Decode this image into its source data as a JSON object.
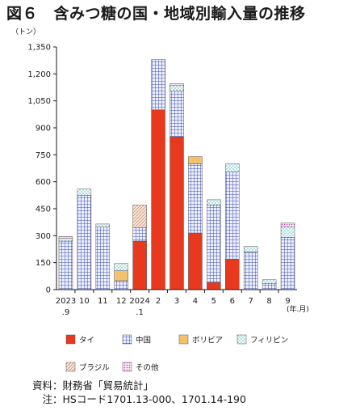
{
  "title": "図６　含みつ糖の国・地域別輸入量の推移",
  "chart_data": {
    "type": "bar",
    "stacked": true,
    "unit_label": "（トン）",
    "x_unit_label": "(年.月)",
    "categories": [
      {
        "line1": "2023",
        "line2": ".9"
      },
      {
        "line1": "10",
        "line2": ""
      },
      {
        "line1": "11",
        "line2": ""
      },
      {
        "line1": "12",
        "line2": ""
      },
      {
        "line1": "2024",
        "line2": ".1"
      },
      {
        "line1": "2",
        "line2": ""
      },
      {
        "line1": "3",
        "line2": ""
      },
      {
        "line1": "4",
        "line2": ""
      },
      {
        "line1": "5",
        "line2": ""
      },
      {
        "line1": "6",
        "line2": ""
      },
      {
        "line1": "7",
        "line2": ""
      },
      {
        "line1": "8",
        "line2": ""
      },
      {
        "line1": "9",
        "line2": ""
      }
    ],
    "ylim": [
      0,
      1350
    ],
    "yticks": [
      "0",
      "150",
      "300",
      "450",
      "600",
      "750",
      "900",
      "1,050",
      "1,200",
      "1,350"
    ],
    "grid": false,
    "legend_position": "bottom",
    "series": [
      {
        "name": "タイ",
        "color": "#e8391e",
        "pattern": "solid",
        "values": [
          0,
          0,
          0,
          0,
          270,
          1000,
          850,
          315,
          40,
          170,
          0,
          0,
          0
        ]
      },
      {
        "name": "中国",
        "color": "#3a4fb0",
        "pattern": "grid",
        "values": [
          270,
          525,
          350,
          50,
          75,
          280,
          255,
          385,
          430,
          485,
          210,
          35,
          290
        ]
      },
      {
        "name": "ボリビア",
        "color": "#f5c26b",
        "pattern": "solid",
        "values": [
          0,
          0,
          0,
          55,
          0,
          0,
          0,
          40,
          0,
          0,
          0,
          0,
          0
        ]
      },
      {
        "name": "フィリピン",
        "color": "#4fc0c0",
        "pattern": "dots",
        "values": [
          15,
          35,
          15,
          40,
          0,
          0,
          30,
          0,
          30,
          45,
          30,
          20,
          60
        ]
      },
      {
        "name": "ブラジル",
        "color": "#c88a6a",
        "pattern": "hatch",
        "values": [
          0,
          0,
          0,
          0,
          125,
          0,
          0,
          0,
          0,
          0,
          0,
          0,
          0
        ]
      },
      {
        "name": "その他",
        "color": "#c73ab0",
        "pattern": "dense-dots",
        "values": [
          10,
          0,
          0,
          0,
          0,
          0,
          10,
          0,
          0,
          0,
          0,
          0,
          20
        ]
      }
    ]
  },
  "notes": {
    "source": "資料：財務省「貿易統計」",
    "note": "　注：HSコード1701.13-000、1701.14-190"
  }
}
